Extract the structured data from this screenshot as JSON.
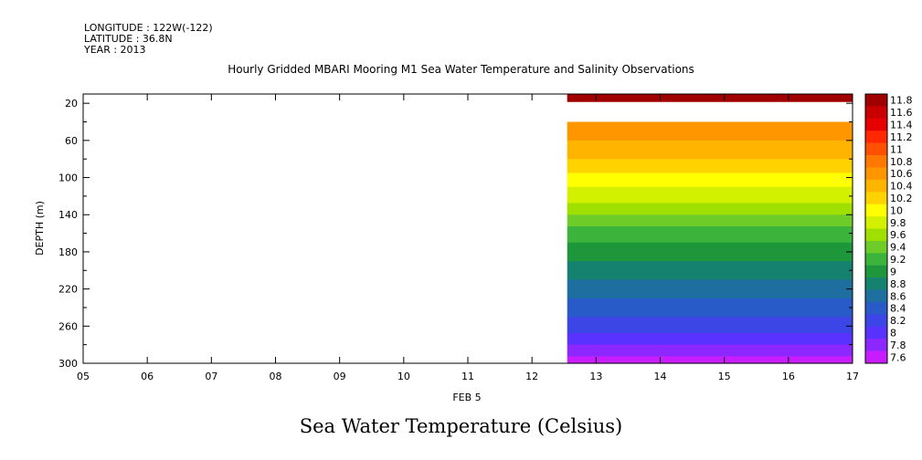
{
  "header": {
    "longitude": "LONGITUDE : 122W(-122)",
    "latitude": "LATITUDE : 36.8N",
    "year": "YEAR : 2013"
  },
  "footer_title": "Sea Water Temperature (Celsius)",
  "chart_data": {
    "type": "heatmap",
    "title": "Hourly Gridded MBARI Mooring M1 Sea Water Temperature and Salinity Observations",
    "xlabel": "FEB  5",
    "ylabel": "DEPTH (m)",
    "x_ticks": [
      "05",
      "06",
      "07",
      "08",
      "09",
      "10",
      "11",
      "12",
      "13",
      "14",
      "15",
      "16",
      "17"
    ],
    "x_range": [
      5,
      17
    ],
    "y_ticks": [
      20,
      60,
      100,
      140,
      180,
      220,
      260,
      300
    ],
    "y_range": [
      10,
      300
    ],
    "y_inverted": true,
    "data_x_start": 12.55,
    "colorbar": {
      "ticks": [
        "11.8",
        "11.6",
        "11.4",
        "11.2",
        "11",
        "10.8",
        "10.6",
        "10.4",
        "10.2",
        "10",
        "9.8",
        "9.6",
        "9.4",
        "9.2",
        "9",
        "8.8",
        "8.6",
        "8.4",
        "8.2",
        "8",
        "7.8",
        "7.6"
      ],
      "colors": [
        "#a00000",
        "#c80000",
        "#e60000",
        "#ff2800",
        "#ff5000",
        "#ff7800",
        "#ff9600",
        "#ffb400",
        "#ffd200",
        "#ffff00",
        "#d2f000",
        "#a0e000",
        "#6ecc28",
        "#3cb43c",
        "#1e963c",
        "#14826e",
        "#1e6ea0",
        "#285ac8",
        "#3c46e6",
        "#5a32ff",
        "#8c28ff",
        "#c81eff"
      ]
    },
    "depth_profile": [
      {
        "depth": 10,
        "value": 11.8
      },
      {
        "depth": 18,
        "value": 11.8
      },
      {
        "depth": 30,
        "value": null
      },
      {
        "depth": 40,
        "value": 10.7
      },
      {
        "depth": 50,
        "value": 10.6
      },
      {
        "depth": 60,
        "value": 10.5
      },
      {
        "depth": 70,
        "value": 10.4
      },
      {
        "depth": 80,
        "value": 10.3
      },
      {
        "depth": 90,
        "value": 10.2
      },
      {
        "depth": 100,
        "value": 10.0
      },
      {
        "depth": 120,
        "value": 9.8
      },
      {
        "depth": 140,
        "value": 9.5
      },
      {
        "depth": 160,
        "value": 9.2
      },
      {
        "depth": 180,
        "value": 9.0
      },
      {
        "depth": 200,
        "value": 8.8
      },
      {
        "depth": 220,
        "value": 8.6
      },
      {
        "depth": 240,
        "value": 8.4
      },
      {
        "depth": 260,
        "value": 8.2
      },
      {
        "depth": 280,
        "value": 7.9
      },
      {
        "depth": 300,
        "value": 7.6
      }
    ]
  }
}
